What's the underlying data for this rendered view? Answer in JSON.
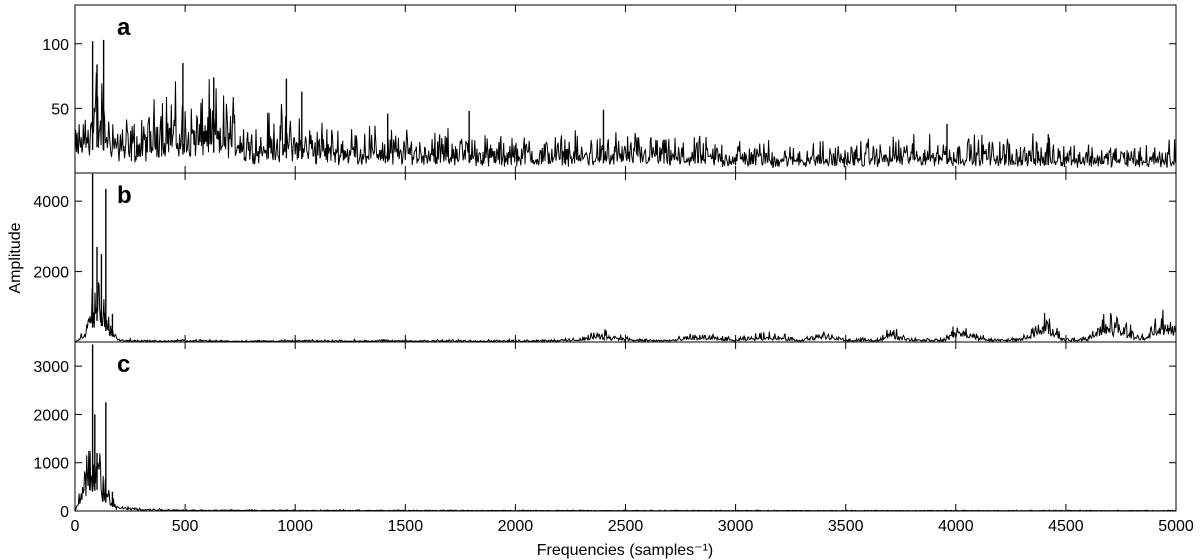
{
  "chart_data": [
    {
      "type": "line",
      "panel_label": "a",
      "xlim": [
        0,
        5000
      ],
      "ylim": [
        0,
        130
      ],
      "yticks": [
        50,
        100
      ],
      "series": [
        {
          "x": [
            0,
            100,
            200,
            300,
            400,
            500,
            600,
            700,
            800,
            900,
            1000,
            1100,
            1200,
            1300,
            1400,
            1500,
            1600,
            1700,
            1800,
            1900,
            2000,
            2250,
            2500,
            2750,
            3000,
            3250,
            3500,
            3750,
            4000,
            4250,
            4500,
            4750,
            5000
          ],
          "y": [
            22,
            50,
            28,
            24,
            42,
            35,
            40,
            38,
            24,
            30,
            28,
            24,
            22,
            24,
            22,
            20,
            21,
            20,
            21,
            16,
            18,
            18,
            19,
            16,
            16,
            15,
            15,
            17,
            18,
            17,
            15,
            15,
            14
          ],
          "peaks": [
            [
              80,
              102
            ],
            [
              130,
              103
            ],
            [
              100,
              84
            ],
            [
              490,
              85
            ],
            [
              630,
              74
            ],
            [
              960,
              73
            ],
            [
              1030,
              63
            ],
            [
              1420,
              46
            ],
            [
              1790,
              48
            ],
            [
              2400,
              49
            ],
            [
              3960,
              38
            ],
            [
              4420,
              30
            ]
          ]
        }
      ]
    },
    {
      "type": "line",
      "panel_label": "b",
      "ylabel": "Amplitude",
      "xlim": [
        0,
        5000
      ],
      "ylim": [
        0,
        4800
      ],
      "yticks": [
        2000,
        4000
      ],
      "series": [
        {
          "x": [
            0,
            50,
            100,
            150,
            200,
            300,
            400,
            500,
            750,
            1000,
            1500,
            2000,
            2250,
            2400,
            2550,
            2700,
            2850,
            3000,
            3150,
            3300,
            3400,
            3500,
            3650,
            3700,
            3800,
            3950,
            4000,
            4150,
            4300,
            4400,
            4500,
            4600,
            4700,
            4850,
            4950,
            5000
          ],
          "y": [
            0,
            300,
            1500,
            600,
            60,
            40,
            30,
            50,
            30,
            40,
            40,
            40,
            60,
            220,
            60,
            50,
            180,
            60,
            200,
            50,
            230,
            60,
            70,
            280,
            80,
            60,
            380,
            70,
            80,
            580,
            70,
            120,
            600,
            120,
            560,
            480
          ],
          "peaks": [
            [
              80,
              4780
            ],
            [
              100,
              2700
            ],
            [
              120,
              2500
            ],
            [
              140,
              4350
            ],
            [
              170,
              800
            ]
          ]
        }
      ]
    },
    {
      "type": "line",
      "panel_label": "c",
      "xlabel": "Frequencies (samples⁻¹)",
      "xlim": [
        0,
        5000
      ],
      "ylim": [
        0,
        3500
      ],
      "xticks": [
        0,
        500,
        1000,
        1500,
        2000,
        2500,
        3000,
        3500,
        4000,
        4500,
        5000
      ],
      "yticks": [
        0,
        1000,
        2000,
        3000
      ],
      "series": [
        {
          "x": [
            0,
            40,
            80,
            100,
            120,
            150,
            200,
            300,
            500,
            1000,
            2000,
            3000,
            4000,
            5000
          ],
          "y": [
            0,
            700,
            1000,
            1100,
            700,
            300,
            80,
            40,
            20,
            15,
            12,
            10,
            10,
            10
          ],
          "peaks": [
            [
              80,
              3450
            ],
            [
              90,
              2000
            ],
            [
              100,
              1200
            ],
            [
              140,
              2250
            ],
            [
              170,
              400
            ]
          ]
        }
      ]
    }
  ]
}
